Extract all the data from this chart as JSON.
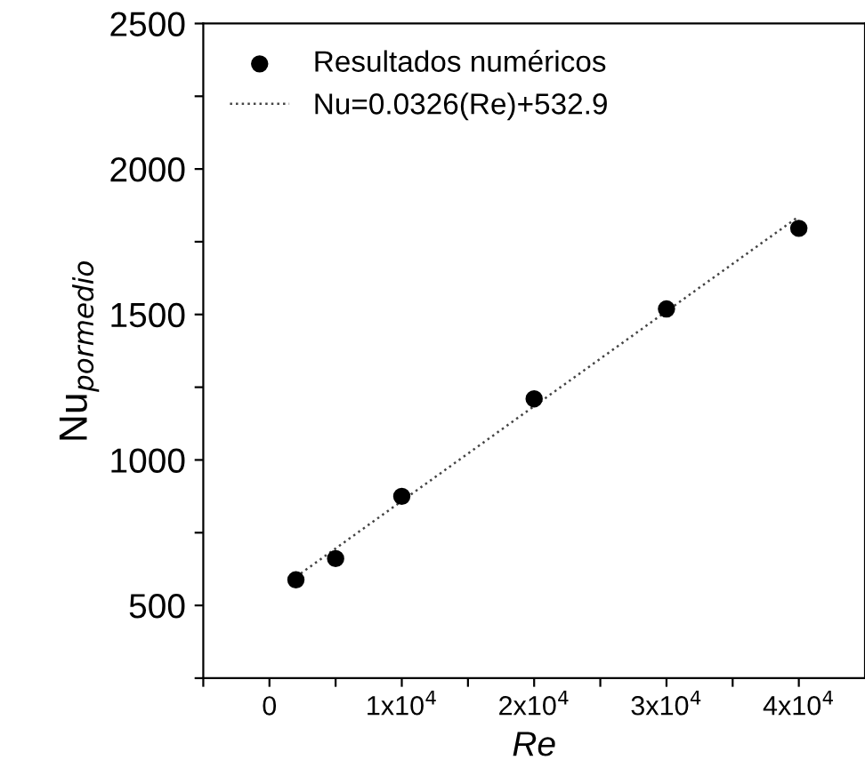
{
  "chart_data": {
    "type": "scatter",
    "xlabel": "Re",
    "ylabel": "Nu$_{pormedio}$",
    "xlim": [
      -5000,
      45000
    ],
    "ylim": [
      250,
      2500
    ],
    "xticks": [
      {
        "value": -5000,
        "label": null
      },
      0,
      {
        "value": 5000,
        "label": null
      },
      {
        "value": 10000,
        "label": "1x10$^{4}$"
      },
      {
        "value": 15000,
        "label": null
      },
      {
        "value": 20000,
        "label": "2x10$^{4}$"
      },
      {
        "value": 25000,
        "label": null
      },
      {
        "value": 30000,
        "label": "3x10$^{4}$"
      },
      {
        "value": 35000,
        "label": null
      },
      {
        "value": 40000,
        "label": "4x10$^{4}$"
      }
    ],
    "yticks": [
      {
        "value": 250,
        "label": null
      },
      500,
      {
        "value": 750,
        "label": null
      },
      1000,
      {
        "value": 1250,
        "label": null
      },
      1500,
      {
        "value": 1750,
        "label": null
      },
      2000,
      {
        "value": 2250,
        "label": null
      },
      2500
    ],
    "grid": false,
    "legend": "top left",
    "series": [
      {
        "name": "Resultados numéricos",
        "color": "#000000",
        "marker": "circle",
        "x": [
          2000,
          5000,
          10000,
          20000,
          30000,
          40000
        ],
        "values": [
          588,
          661,
          875,
          1210,
          1519,
          1796
        ]
      },
      {
        "name": "Nu=0.0326(Re)+532.9",
        "type": "line",
        "color": "#444444",
        "line_style": "dotted",
        "marker": "none",
        "x": [
          2000,
          40000
        ],
        "values": [
          598,
          1837
        ]
      }
    ]
  }
}
